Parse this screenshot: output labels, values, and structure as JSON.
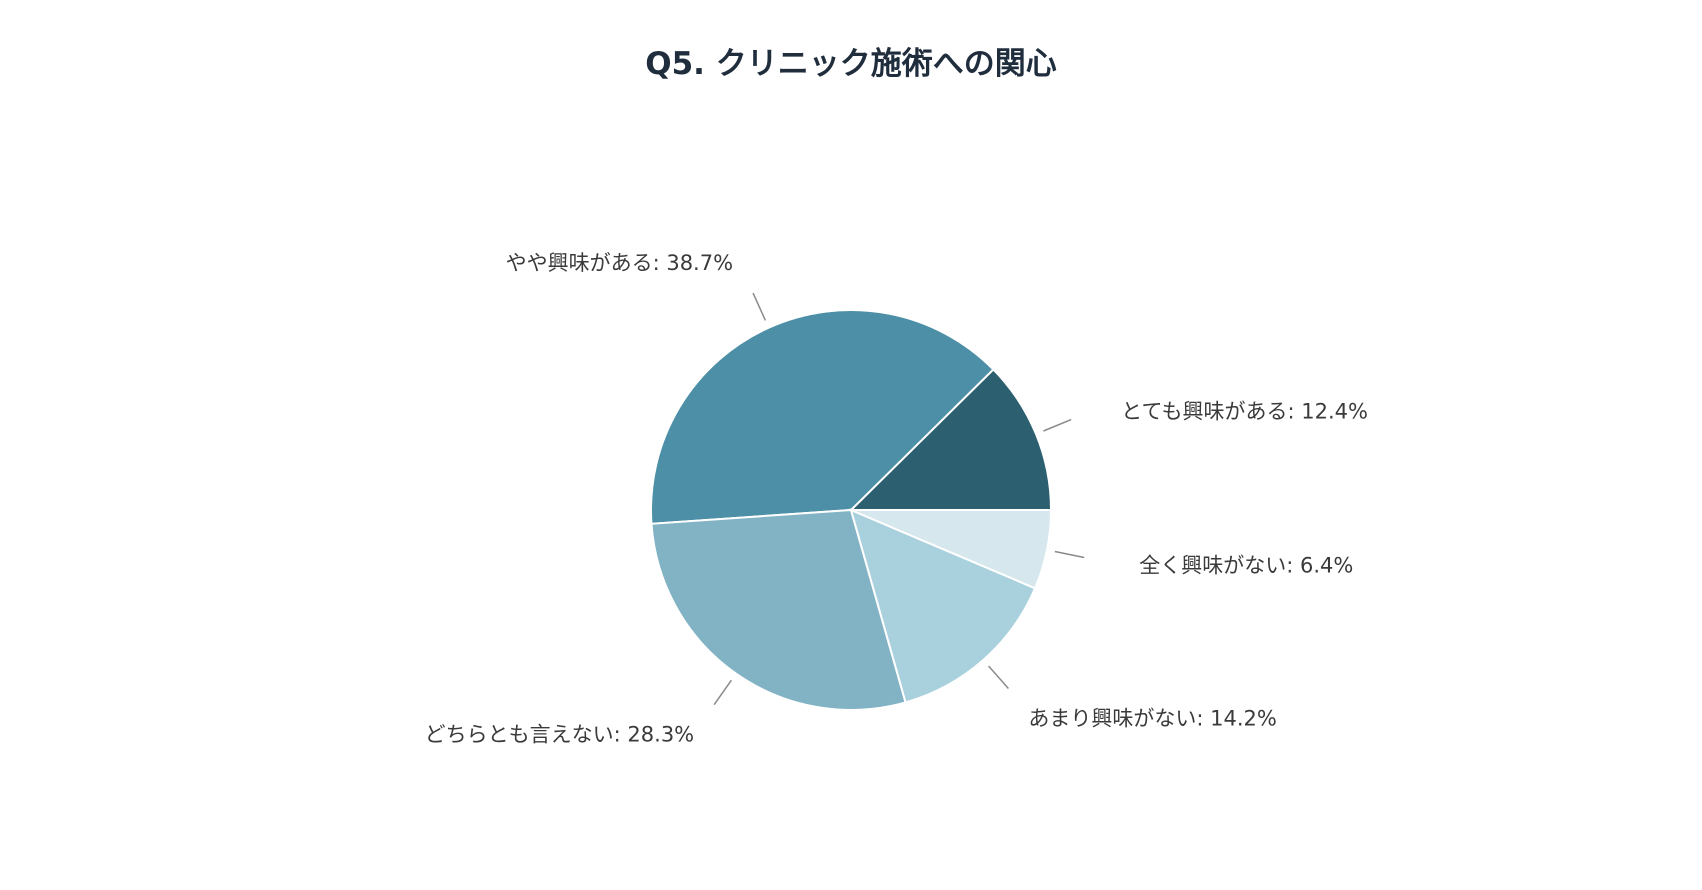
{
  "chart_data": {
    "type": "pie",
    "title": "Q5. クリニック施術への関心",
    "start_angle_deg": 0,
    "direction": "counterclockwise",
    "slices": [
      {
        "label": "とても興味がある: 12.4%",
        "name": "とても興味がある",
        "value": 12.4,
        "color": "#2c5f6f"
      },
      {
        "label": "やや興味がある: 38.7%",
        "name": "やや興味がある",
        "value": 38.7,
        "color": "#4c8fa6"
      },
      {
        "label": "どちらとも言えない: 28.3%",
        "name": "どちらとも言えない",
        "value": 28.3,
        "color": "#82b3c4"
      },
      {
        "label": "あまり興味がない: 14.2%",
        "name": "あまり興味がない",
        "value": 14.2,
        "color": "#a9d0dd"
      },
      {
        "label": "全く興味がない: 6.4%",
        "name": "全く興味がない",
        "value": 6.4,
        "color": "#d6e7ee"
      }
    ]
  }
}
